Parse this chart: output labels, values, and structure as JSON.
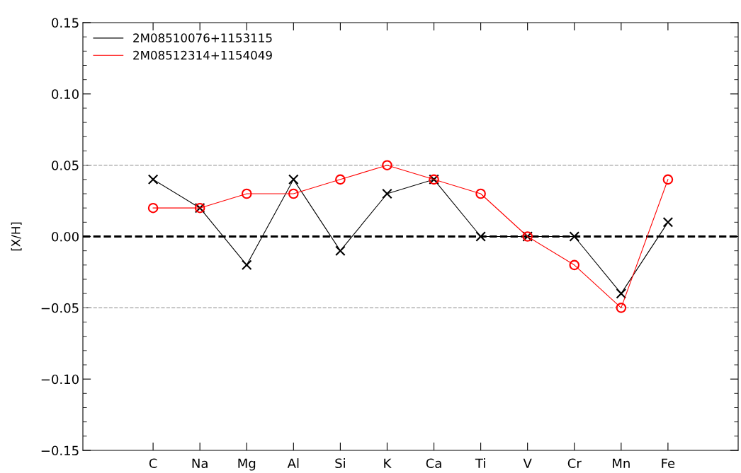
{
  "chart_data": {
    "type": "line",
    "ylabel": "[X/H]",
    "categories": [
      "C",
      "Na",
      "Mg",
      "Al",
      "Si",
      "K",
      "Ca",
      "Ti",
      "V",
      "Cr",
      "Mn",
      "Fe"
    ],
    "series": [
      {
        "name": "2M08510076+1153115",
        "color": "#000000",
        "marker": "cross",
        "values": [
          0.04,
          0.02,
          -0.02,
          0.04,
          -0.01,
          0.03,
          0.04,
          0.0,
          0.0,
          0.0,
          -0.04,
          0.01
        ]
      },
      {
        "name": "2M08512314+1154049",
        "color": "#ff0000",
        "marker": "circle",
        "values": [
          0.02,
          0.02,
          0.03,
          0.03,
          0.04,
          0.05,
          0.04,
          0.03,
          0.0,
          -0.02,
          -0.05,
          0.04
        ]
      }
    ],
    "ylim": [
      -0.15,
      0.15
    ],
    "yticks": [
      {
        "value": -0.15,
        "label": "−0.15"
      },
      {
        "value": -0.1,
        "label": "−0.10"
      },
      {
        "value": -0.05,
        "label": "−0.05"
      },
      {
        "value": 0,
        "label": "0.00"
      },
      {
        "value": 0.05,
        "label": "0.05"
      },
      {
        "value": 0.1,
        "label": "0.10"
      },
      {
        "value": 0.15,
        "label": "0.15"
      }
    ],
    "ref_lines": [
      {
        "axis": "y",
        "value": 0,
        "color": "#000000",
        "line_style": "dashed"
      },
      {
        "axis": "y",
        "value": 0.05,
        "color": "#a0a0a0",
        "line_style": "dashed"
      },
      {
        "axis": "y",
        "value": -0.05,
        "color": "#a0a0a0",
        "line_style": "dashed"
      }
    ],
    "legend": "top left",
    "grid": false
  }
}
